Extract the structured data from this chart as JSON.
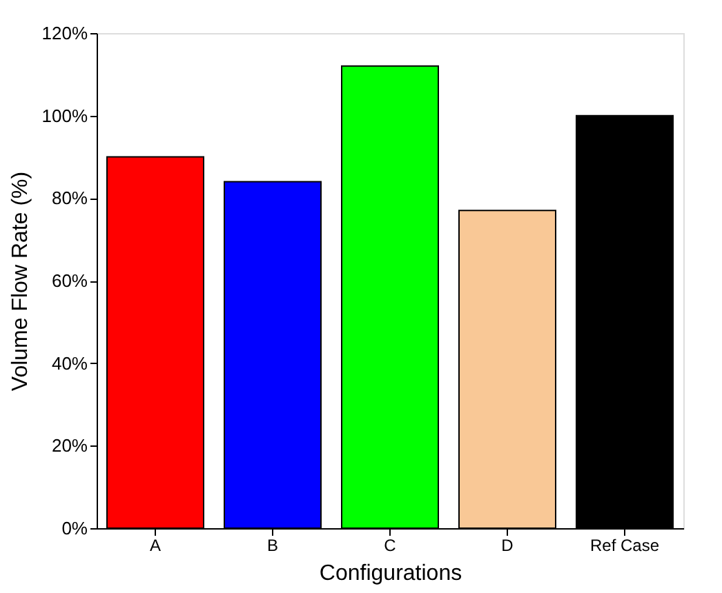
{
  "chart_data": {
    "type": "bar",
    "xlabel": "Configurations",
    "ylabel": "Volume Flow Rate (%)",
    "categories": [
      "A",
      "B",
      "C",
      "D",
      "Ref Case"
    ],
    "values": [
      90,
      84,
      112,
      77,
      100
    ],
    "colors": [
      "#ff0000",
      "#0000ff",
      "#00ff00",
      "#f9c896",
      "#000000"
    ],
    "ylim": [
      0,
      120
    ],
    "yticks": [
      {
        "value": 0,
        "label": "0%"
      },
      {
        "value": 20,
        "label": "20%"
      },
      {
        "value": 40,
        "label": "40%"
      },
      {
        "value": 60,
        "label": "60%"
      },
      {
        "value": 80,
        "label": "80%"
      },
      {
        "value": 100,
        "label": "100%"
      },
      {
        "value": 120,
        "label": "120%"
      }
    ],
    "grid": false,
    "legend": false
  }
}
